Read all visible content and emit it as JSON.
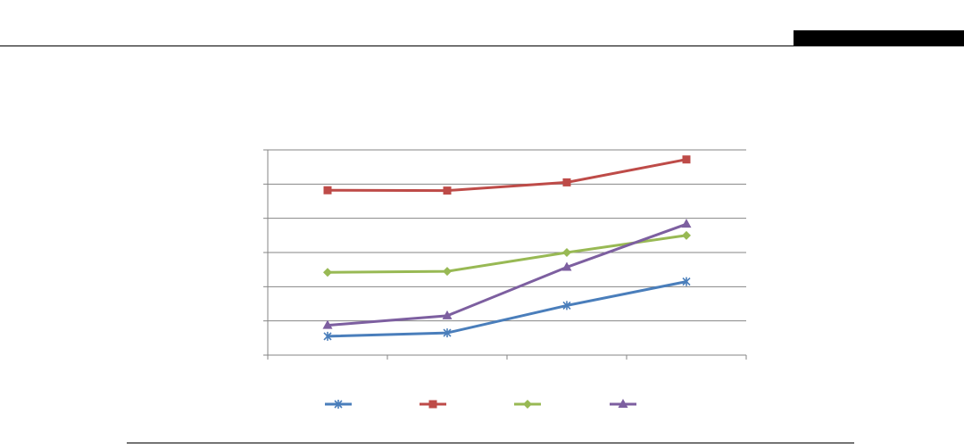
{
  "chart_data": {
    "type": "line",
    "categories": [
      "",
      "",
      "",
      ""
    ],
    "ylim": [
      0,
      6
    ],
    "grid": true,
    "legend_placement": "bottom",
    "series": [
      {
        "values": [
          0.55,
          0.65,
          1.45,
          2.15
        ],
        "color": "#4a7ebb",
        "marker": "star"
      },
      {
        "values": [
          4.82,
          4.81,
          5.05,
          5.72
        ],
        "color": "#be4b48",
        "marker": "square"
      },
      {
        "values": [
          2.42,
          2.45,
          3.0,
          3.5
        ],
        "color": "#98b954",
        "marker": "diamond"
      },
      {
        "values": [
          0.87,
          1.15,
          2.57,
          3.83
        ],
        "color": "#7d5fa0",
        "marker": "triangle"
      }
    ]
  }
}
